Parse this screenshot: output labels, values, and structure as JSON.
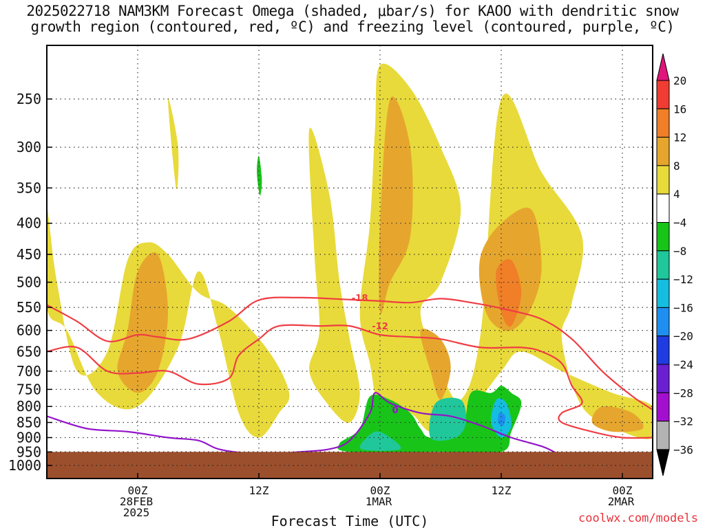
{
  "title": {
    "line1": "2025022718 NAM3KM Forecast Omega (shaded, μbar/s) for KAOO with dendritic snow",
    "line2": "growth region (contoured, red, ºC) and freezing level (contoured, purple, ºC)"
  },
  "credit": "coolwx.com/models",
  "chart_data": {
    "type": "heatmap",
    "title": "2025022718 NAM3KM Forecast Omega (shaded, μbar/s) for KAOO with dendritic snow growth region (contoured, red, ºC) and freezing level (contoured, purple, ºC)",
    "xlabel": "Forecast Time (UTC)",
    "ylabel": "",
    "x_unit": "forecast hour from 2025022718",
    "xlim": [
      -3,
      57
    ],
    "ylim_hPa": [
      1050,
      200
    ],
    "y_scale": "log",
    "grid": true,
    "y_ticks": [
      250,
      300,
      350,
      400,
      450,
      500,
      550,
      600,
      650,
      700,
      750,
      800,
      850,
      900,
      950,
      1000
    ],
    "x_ticks": [
      {
        "hour": 6,
        "lines": [
          "00Z",
          "28FEB",
          "2025"
        ]
      },
      {
        "hour": 18,
        "lines": [
          "12Z"
        ]
      },
      {
        "hour": 30,
        "lines": [
          "00Z",
          "1MAR"
        ]
      },
      {
        "hour": 42,
        "lines": [
          "12Z"
        ]
      },
      {
        "hour": 54,
        "lines": [
          "00Z",
          "2MAR"
        ]
      }
    ],
    "colorbar": {
      "levels": [
        "20",
        "16",
        "12",
        "8",
        "4",
        "−4",
        "−8",
        "−12",
        "−16",
        "−20",
        "−24",
        "−28",
        "−32",
        "−36"
      ],
      "colors": [
        "#e0157a",
        "#ef3d34",
        "#f07f27",
        "#e6a62e",
        "#e8da3a",
        "#ffffff",
        "#18c418",
        "#20c79a",
        "#15bde0",
        "#1e8ff0",
        "#1e3cdf",
        "#6a1fd0",
        "#a30fcf",
        "#b3b3b3",
        "#000000"
      ]
    },
    "omega_regions": [
      {
        "value": 6,
        "points": [
          [
            -3,
            550
          ],
          [
            -1,
            600
          ],
          [
            2,
            760
          ],
          [
            6,
            800
          ],
          [
            10,
            640
          ],
          [
            12,
            480
          ],
          [
            14,
            600
          ],
          [
            16,
            820
          ],
          [
            18,
            900
          ],
          [
            20,
            820
          ],
          [
            21,
            760
          ],
          [
            19,
            650
          ],
          [
            15,
            550
          ],
          [
            12,
            520
          ],
          [
            9,
            450
          ],
          [
            7,
            430
          ],
          [
            5,
            460
          ],
          [
            3,
            650
          ],
          [
            0,
            700
          ],
          [
            -2,
            500
          ],
          [
            -3,
            380
          ]
        ]
      },
      {
        "value": 10,
        "points": [
          [
            4,
            700
          ],
          [
            6,
            760
          ],
          [
            8,
            700
          ],
          [
            9,
            560
          ],
          [
            8,
            450
          ],
          [
            6,
            480
          ],
          [
            5,
            600
          ]
        ]
      },
      {
        "value": 6,
        "points": [
          [
            9,
            250
          ],
          [
            10,
            300
          ],
          [
            9.8,
            350
          ]
        ]
      },
      {
        "value": -6,
        "points": [
          [
            18,
            310
          ],
          [
            18.3,
            340
          ],
          [
            18.1,
            360
          ],
          [
            17.8,
            330
          ]
        ]
      },
      {
        "value": 6,
        "points": [
          [
            23,
            280
          ],
          [
            25,
            360
          ],
          [
            26,
            500
          ],
          [
            27,
            620
          ],
          [
            28,
            760
          ],
          [
            27,
            850
          ],
          [
            25,
            800
          ],
          [
            23,
            700
          ],
          [
            24,
            600
          ],
          [
            23.5,
            450
          ]
        ]
      },
      {
        "value": 6,
        "points": [
          [
            30,
            220
          ],
          [
            33,
            240
          ],
          [
            36,
            300
          ],
          [
            38,
            380
          ],
          [
            36,
            500
          ],
          [
            34,
            560
          ],
          [
            36,
            700
          ],
          [
            38,
            780
          ],
          [
            40,
            600
          ],
          [
            42,
            250
          ],
          [
            46,
            330
          ],
          [
            50,
            420
          ],
          [
            49,
            540
          ],
          [
            48,
            620
          ],
          [
            50,
            800
          ],
          [
            54,
            880
          ],
          [
            57,
            900
          ],
          [
            57,
            800
          ],
          [
            53,
            760
          ],
          [
            48,
            700
          ],
          [
            44,
            650
          ],
          [
            42,
            700
          ],
          [
            38,
            850
          ],
          [
            35,
            880
          ],
          [
            33,
            820
          ],
          [
            30,
            800
          ],
          [
            29,
            680
          ],
          [
            28,
            560
          ],
          [
            29,
            400
          ],
          [
            29.5,
            280
          ]
        ]
      },
      {
        "value": 10,
        "points": [
          [
            31,
            250
          ],
          [
            33,
            300
          ],
          [
            33,
            420
          ],
          [
            31,
            500
          ],
          [
            30,
            560
          ],
          [
            30,
            400
          ]
        ]
      },
      {
        "value": 10,
        "points": [
          [
            34,
            600
          ],
          [
            35,
            700
          ],
          [
            36,
            780
          ],
          [
            37,
            690
          ],
          [
            36,
            620
          ]
        ]
      },
      {
        "value": 10,
        "points": [
          [
            40,
            450
          ],
          [
            42,
            400
          ],
          [
            45,
            380
          ],
          [
            46,
            470
          ],
          [
            45,
            550
          ],
          [
            43,
            600
          ],
          [
            41,
            580
          ],
          [
            40,
            520
          ]
        ]
      },
      {
        "value": 14,
        "points": [
          [
            41.5,
            480
          ],
          [
            43,
            460
          ],
          [
            44,
            520
          ],
          [
            43,
            590
          ],
          [
            42,
            560
          ]
        ]
      },
      {
        "value": 10,
        "points": [
          [
            52,
            800
          ],
          [
            55,
            820
          ],
          [
            56,
            870
          ],
          [
            53,
            880
          ],
          [
            51,
            850
          ]
        ]
      },
      {
        "value": -6,
        "points": [
          [
            29,
            770
          ],
          [
            31,
            780
          ],
          [
            33,
            820
          ],
          [
            34,
            870
          ],
          [
            35,
            900
          ],
          [
            38,
            880
          ],
          [
            39,
            760
          ],
          [
            41,
            760
          ],
          [
            42,
            740
          ],
          [
            43,
            760
          ],
          [
            44,
            790
          ],
          [
            43,
            880
          ],
          [
            42,
            950
          ],
          [
            36,
            950
          ],
          [
            27,
            950
          ],
          [
            26,
            920
          ],
          [
            28,
            870
          ]
        ]
      },
      {
        "value": -10,
        "points": [
          [
            29.5,
            880
          ],
          [
            31,
            900
          ],
          [
            32,
            940
          ],
          [
            29,
            945
          ],
          [
            28,
            930
          ]
        ]
      },
      {
        "value": -10,
        "points": [
          [
            35.5,
            790
          ],
          [
            38,
            780
          ],
          [
            38.5,
            850
          ],
          [
            37.5,
            900
          ],
          [
            35,
            900
          ]
        ]
      },
      {
        "value": -14,
        "points": [
          [
            41.5,
            780
          ],
          [
            42.5,
            790
          ],
          [
            43,
            860
          ],
          [
            42,
            900
          ],
          [
            41,
            850
          ]
        ]
      },
      {
        "value": -18,
        "points": [
          [
            41.8,
            820
          ],
          [
            42.4,
            830
          ],
          [
            42.2,
            860
          ],
          [
            41.7,
            850
          ]
        ]
      }
    ],
    "dgz_contours": [
      {
        "label": "-18",
        "label_at": [
          28,
          530
        ],
        "points": [
          [
            -3,
            545
          ],
          [
            0,
            580
          ],
          [
            3,
            625
          ],
          [
            6,
            610
          ],
          [
            8,
            615
          ],
          [
            11,
            620
          ],
          [
            15,
            580
          ],
          [
            18,
            535
          ],
          [
            22,
            530
          ],
          [
            26,
            533
          ],
          [
            30,
            537
          ],
          [
            33,
            540
          ],
          [
            36,
            532
          ],
          [
            39,
            540
          ],
          [
            42,
            552
          ],
          [
            46,
            575
          ],
          [
            49,
            620
          ],
          [
            52,
            700
          ],
          [
            55,
            770
          ],
          [
            57,
            810
          ]
        ]
      },
      {
        "label": "-12",
        "label_at": [
          30,
          590
        ],
        "points": [
          [
            -3,
            650
          ],
          [
            0,
            640
          ],
          [
            3,
            700
          ],
          [
            6,
            705
          ],
          [
            9,
            700
          ],
          [
            12,
            735
          ],
          [
            15,
            720
          ],
          [
            16,
            660
          ],
          [
            18,
            620
          ],
          [
            20,
            590
          ],
          [
            24,
            590
          ],
          [
            27,
            590
          ],
          [
            30,
            610
          ],
          [
            33,
            615
          ],
          [
            36,
            620
          ],
          [
            40,
            640
          ],
          [
            44,
            640
          ],
          [
            46,
            650
          ],
          [
            48,
            680
          ],
          [
            49,
            740
          ],
          [
            50,
            790
          ],
          [
            48,
            820
          ],
          [
            48,
            850
          ],
          [
            51,
            880
          ],
          [
            54,
            900
          ],
          [
            57,
            900
          ]
        ]
      }
    ],
    "freezing_level": [
      {
        "label": "0",
        "label_at": [
          31.5,
          810
        ],
        "points": [
          [
            -3,
            830
          ],
          [
            1,
            870
          ],
          [
            5,
            880
          ],
          [
            9,
            900
          ],
          [
            12,
            910
          ],
          [
            14,
            940
          ],
          [
            17,
            955
          ],
          [
            20,
            955
          ],
          [
            22,
            950
          ],
          [
            25,
            940
          ],
          [
            27,
            910
          ],
          [
            29,
            820
          ],
          [
            29.5,
            760
          ],
          [
            31,
            790
          ],
          [
            34,
            820
          ],
          [
            37,
            830
          ],
          [
            40,
            860
          ],
          [
            43,
            900
          ],
          [
            46,
            930
          ],
          [
            47.5,
            955
          ]
        ]
      }
    ],
    "surface_pressure_hPa": 950
  }
}
